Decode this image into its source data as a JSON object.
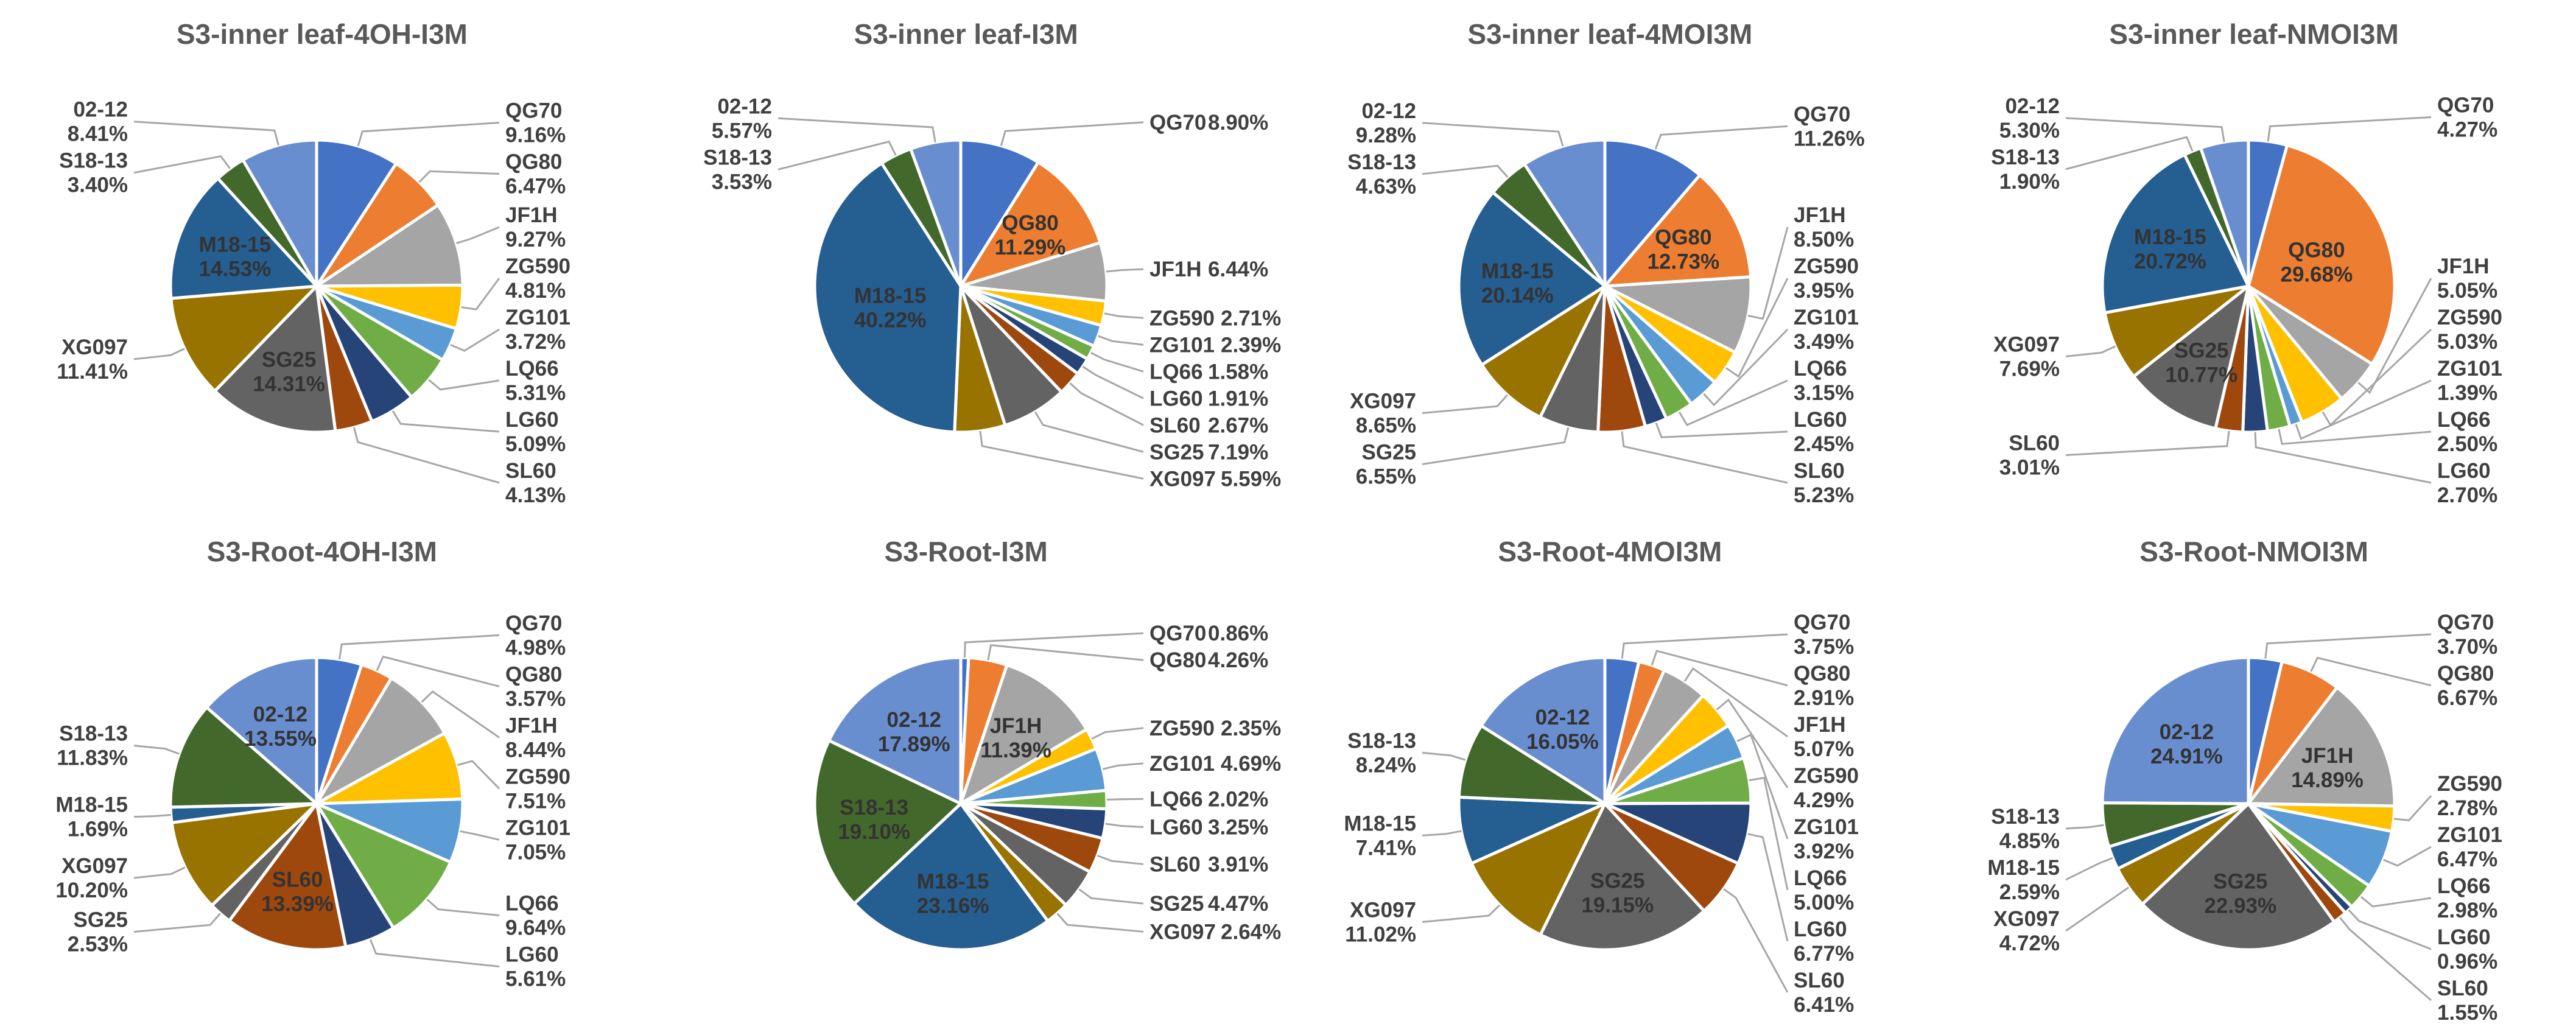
{
  "chart_data": {
    "type": "pie",
    "categories": [
      "QG70",
      "QG80",
      "JF1H",
      "ZG590",
      "ZG101",
      "LQ66",
      "LG60",
      "SL60",
      "SG25",
      "XG097",
      "M18-15",
      "S18-13",
      "02-12"
    ],
    "colors": [
      "#4472C4",
      "#ED7D31",
      "#A5A5A5",
      "#FFC000",
      "#5B9BD5",
      "#70AD47",
      "#264478",
      "#9E480E",
      "#636363",
      "#997300",
      "#255E91",
      "#43682B",
      "#698ED0"
    ],
    "unit": "%",
    "charts": [
      {
        "title": "S3-inner leaf-4OH-I3M",
        "values": [
          9.16,
          6.47,
          9.27,
          4.81,
          3.72,
          5.31,
          5.09,
          4.13,
          14.31,
          11.41,
          14.53,
          3.4,
          8.41
        ]
      },
      {
        "title": "S3-inner leaf-I3M",
        "values": [
          8.9,
          11.29,
          6.44,
          2.71,
          2.39,
          1.58,
          1.91,
          2.67,
          7.19,
          5.59,
          40.22,
          3.53,
          5.57
        ]
      },
      {
        "title": "S3-inner leaf-4MOI3M",
        "values": [
          11.26,
          12.73,
          8.5,
          3.95,
          3.49,
          3.15,
          2.45,
          5.23,
          6.55,
          8.65,
          20.14,
          4.63,
          9.28
        ]
      },
      {
        "title": "S3-inner leaf-NMOI3M",
        "values": [
          4.27,
          29.68,
          5.05,
          5.03,
          1.39,
          2.5,
          2.7,
          3.01,
          10.77,
          7.69,
          20.72,
          1.9,
          5.3
        ]
      },
      {
        "title": "S3-Root-4OH-I3M",
        "values": [
          4.98,
          3.57,
          8.44,
          7.51,
          7.05,
          9.64,
          5.61,
          13.39,
          2.53,
          10.2,
          1.69,
          11.83,
          13.55
        ]
      },
      {
        "title": "S3-Root-I3M",
        "values": [
          0.86,
          4.26,
          11.39,
          2.35,
          4.69,
          2.02,
          3.25,
          3.91,
          4.47,
          2.64,
          23.16,
          19.1,
          17.89
        ]
      },
      {
        "title": "S3-Root-4MOI3M",
        "values": [
          3.75,
          2.91,
          5.07,
          4.29,
          3.92,
          5.0,
          6.77,
          6.41,
          19.15,
          11.02,
          7.41,
          8.24,
          16.05
        ]
      },
      {
        "title": "S3-Root-NMOI3M",
        "values": [
          3.7,
          6.67,
          14.89,
          2.78,
          6.47,
          2.98,
          0.96,
          1.55,
          22.93,
          4.72,
          2.59,
          4.85,
          24.91
        ]
      }
    ]
  }
}
